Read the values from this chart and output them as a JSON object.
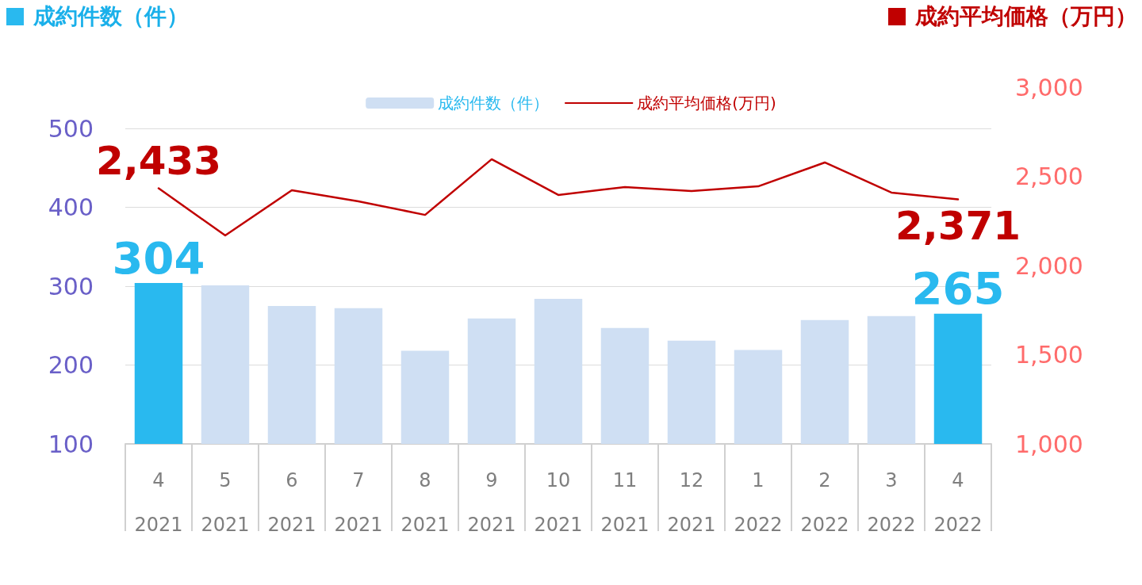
{
  "chart_data": {
    "type": "bar",
    "ylabel": "成約件数（件）",
    "y2label": "成約平均価格（万円）",
    "categories": [
      "4\n2021",
      "5\n2021",
      "6\n2021",
      "7\n2021",
      "8\n2021",
      "9\n2021",
      "10\n2021",
      "11\n2021",
      "12\n2021",
      "1\n2022",
      "2\n2022",
      "3\n2022",
      "4\n2022"
    ],
    "series": [
      {
        "name": "成約件数（件）",
        "color": "#cfdff3",
        "colors": [
          "#29b9ef",
          "#cfdff3",
          "#cfdff3",
          "#cfdff3",
          "#cfdff3",
          "#cfdff3",
          "#cfdff3",
          "#cfdff3",
          "#cfdff3",
          "#cfdff3",
          "#cfdff3",
          "#cfdff3",
          "#29b9ef"
        ],
        "values": [
          304,
          301,
          275,
          272,
          218,
          259,
          284,
          247,
          231,
          219,
          257,
          262,
          265
        ],
        "value_labels": [
          "304",
          null,
          null,
          null,
          null,
          null,
          null,
          null,
          null,
          null,
          null,
          null,
          "265"
        ]
      },
      {
        "name": "成約平均価格(万円)",
        "type": "line",
        "axis": "y2",
        "color": "#c00000",
        "values": [
          2433,
          2169,
          2422,
          2360,
          2284,
          2596,
          2396,
          2440,
          2418,
          2444,
          2578,
          2409,
          2371
        ],
        "value_labels": [
          "2,433",
          null,
          null,
          null,
          null,
          null,
          null,
          null,
          null,
          null,
          null,
          null,
          "2,371"
        ]
      }
    ],
    "ylim": [
      100,
      500
    ],
    "yticks": [
      100,
      200,
      300,
      400,
      500
    ],
    "y2lim": [
      1000,
      3000
    ],
    "y2ticks": [
      {
        "value": 1000,
        "label": "1,000"
      },
      {
        "value": 1500,
        "label": "1,500"
      },
      {
        "value": 2000,
        "label": "2,000"
      },
      {
        "value": 2500,
        "label": "2,500"
      },
      {
        "value": 3000,
        "label": "3,000"
      }
    ],
    "grid": "y",
    "legend": "top",
    "marker": "none",
    "line_style": "solid"
  }
}
